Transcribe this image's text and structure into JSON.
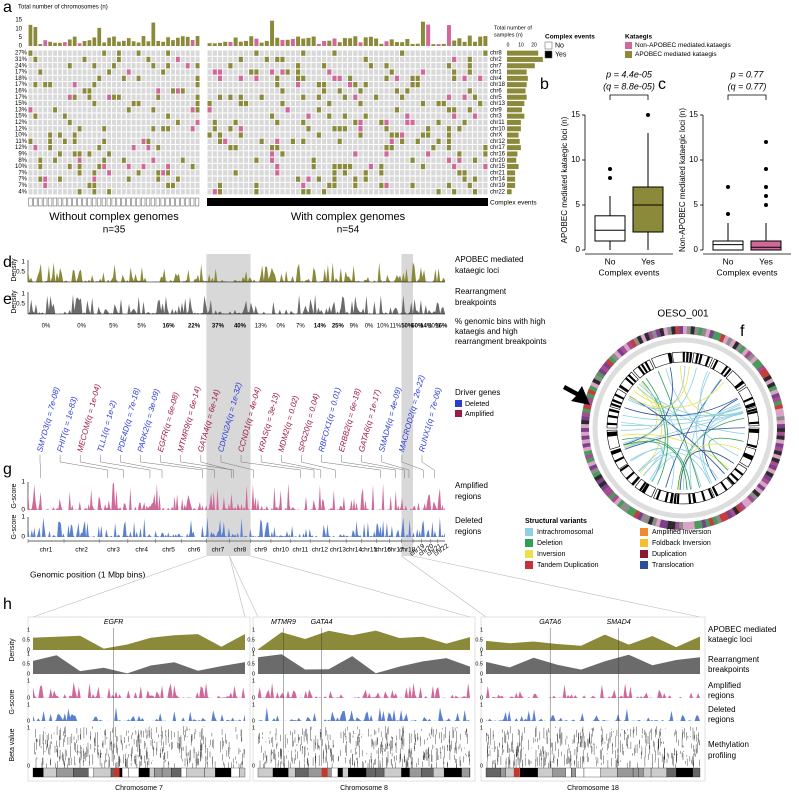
{
  "panel_a": {
    "letter": "a",
    "bar_title": "Total number of chromosomes (n)",
    "bar_ticks": [
      "15",
      "10",
      "5",
      "0"
    ],
    "row_percents": [
      "27%",
      "31%",
      "24%",
      "17%",
      "18%",
      "17%",
      "16%",
      "17%",
      "15%",
      "13%",
      "15%",
      "12%",
      "12%",
      "10%",
      "11%",
      "12%",
      "9%",
      "8%",
      "10%",
      "7%",
      "7%",
      "7%",
      "4%"
    ],
    "rows": [
      "chr8",
      "chr2",
      "chr7",
      "chr1",
      "chr4",
      "chr18",
      "chr6",
      "chr5",
      "chr13",
      "chr9",
      "chr3",
      "chr11",
      "chr10",
      "chrX",
      "chr12",
      "chr17",
      "chr16",
      "chr20",
      "chr15",
      "chr21",
      "chr14",
      "chr19",
      "chr22"
    ],
    "samples_title": [
      "Total number of",
      "samples (n)"
    ],
    "samples_ticks": [
      "0",
      "10",
      "20"
    ],
    "complex_row": "Complex events",
    "groups": [
      {
        "label": "Without complex genomes",
        "n": "n=35"
      },
      {
        "label": "With complex genomes",
        "n": "n=54"
      }
    ]
  },
  "legend_a": {
    "complex_title": "Complex events",
    "complex_items": [
      "No",
      "Yes"
    ],
    "kataegis_title": "Kataegis",
    "kataegis_items": [
      "Non-APOBEC mediated.kataegis",
      "APOBEC mediated kataegis"
    ]
  },
  "panel_b": {
    "letter": "b",
    "p": "p = 4.4e-05",
    "q": "(q = 8.8e-05)",
    "ylabel": "APOBEC mediated kataegic loci (n)",
    "yticks": [
      "0",
      "5",
      "10",
      "15"
    ],
    "categories": [
      "No",
      "Yes"
    ],
    "xlabel": "Complex events"
  },
  "panel_c": {
    "letter": "c",
    "p": "p = 0.77",
    "q": "(q = 0.77)",
    "ylabel": "Non-APOBEC mediated kataegic loci (n)",
    "yticks": [
      "0",
      "5",
      "10",
      "15"
    ],
    "categories": [
      "No",
      "Yes"
    ],
    "xlabel": "Complex events"
  },
  "panel_de": {
    "d": "d",
    "e": "e",
    "density": "Density",
    "ticks": [
      "1",
      "0.5"
    ],
    "apobec_label": [
      "APOBEC mediated",
      "kataegic loci"
    ],
    "rearr_label": [
      "Rearrangment",
      "breakpoints"
    ],
    "percents": [
      "0%",
      "0%",
      "5%",
      "5%",
      "16%",
      "22%",
      "37%",
      "40%",
      "13%",
      "0%",
      "7%",
      "14%",
      "25%",
      "9%",
      "0%",
      "10%",
      "11%",
      "50%",
      "50%",
      "14%",
      "10%",
      "16%"
    ],
    "percent_label": [
      "% genomic bins with high",
      "kataegis and high",
      "rearrangment breakpoints"
    ]
  },
  "drivers": {
    "legend_title": "Driver genes",
    "legend": [
      {
        "label": "Deleted",
        "color": "#2b3bd6"
      },
      {
        "label": "Amplified",
        "color": "#9b1a4a"
      }
    ],
    "genes": [
      {
        "label": "SMYD3(q = 7e-08)",
        "color": "#2b3bd6"
      },
      {
        "label": "FHIT(q = 1e-83)",
        "color": "#2b3bd6"
      },
      {
        "label": "MECOM(q = 1e-04)",
        "color": "#9b1a4a"
      },
      {
        "label": "TLL1(q = 1e-2)",
        "color": "#2b3bd6"
      },
      {
        "label": "PDE4D(q = 7e-18)",
        "color": "#2b3bd6"
      },
      {
        "label": "PARK2(q = 3e-09)",
        "color": "#2b3bd6"
      },
      {
        "label": "EGFR(q = 6e-08)",
        "color": "#9b1a4a"
      },
      {
        "label": "MTMR9(q = 6e-14)",
        "color": "#9b1a4a"
      },
      {
        "label": "GATA4(q = 6e-14)",
        "color": "#9b1a4a"
      },
      {
        "label": "CDKN2A(q = 1e-32)",
        "color": "#2b3bd6"
      },
      {
        "label": "CCND1(q = 4e-04)",
        "color": "#9b1a4a"
      },
      {
        "label": "KRAS(q = 3e-13)",
        "color": "#9b1a4a"
      },
      {
        "label": "MDM2(q = 0.02)",
        "color": "#9b1a4a"
      },
      {
        "label": "SPG20(q = 0.04)",
        "color": "#9b1a4a"
      },
      {
        "label": "RBFOX1(q = 0.01)",
        "color": "#2b3bd6"
      },
      {
        "label": "ERBB2(q = 6e-18)",
        "color": "#9b1a4a"
      },
      {
        "label": "GATA6(q = 1e-17)",
        "color": "#9b1a4a"
      },
      {
        "label": "SMAD4(q = 4e-09)",
        "color": "#2b3bd6"
      },
      {
        "label": "MACROD2(q = 2e-22)",
        "color": "#2b3bd6"
      },
      {
        "label": "RUNX1(q = 7e-06)",
        "color": "#2b3bd6"
      }
    ]
  },
  "panel_g": {
    "letter": "g",
    "gscore": "G-score",
    "ticks": [
      "1",
      "0"
    ],
    "amp_label": [
      "Amplified",
      "regions"
    ],
    "del_label": [
      "Deleted",
      "regions"
    ],
    "chromosomes": [
      "chr1",
      "chr2",
      "chr3",
      "chr4",
      "chr5",
      "chr6",
      "chr7",
      "chr8",
      "chr9",
      "chr10",
      "chr11",
      "chr12",
      "chr13",
      "chr14",
      "chr15",
      "chr16",
      "chr17",
      "chr18",
      "chr19",
      "chr20",
      "chr21",
      "chr22"
    ],
    "xlabel": "Genomic position (1 Mbp bins)"
  },
  "panel_f": {
    "letter": "f",
    "sample": "OESO_001"
  },
  "sv_legend": {
    "title": "Structural variants",
    "items": [
      {
        "label": "Intrachromosomal",
        "color": "#8fd0e3"
      },
      {
        "label": "Deletion",
        "color": "#2f9e57"
      },
      {
        "label": "Inversion",
        "color": "#e9e24c"
      },
      {
        "label": "Tandem Duplication",
        "color": "#c9303a"
      },
      {
        "label": "Amplified Inversion",
        "color": "#f08a2e"
      },
      {
        "label": "Foldback  Inversion",
        "color": "#f5c02a"
      },
      {
        "label": "Duplication",
        "color": "#8a1b2e"
      },
      {
        "label": "Translocation",
        "color": "#2b4f9c"
      }
    ]
  },
  "panel_h": {
    "letter": "h",
    "density": "Density",
    "gscore": "G-score",
    "beta": "Beta value",
    "density_ticks": [
      "1",
      "0.5",
      "0"
    ],
    "gscore_ticks": [
      "1",
      "0"
    ],
    "beta_ticks": [
      "1",
      "0"
    ],
    "panels": [
      {
        "chromosome": "Chromosome 7",
        "genes": [
          "EGFR"
        ]
      },
      {
        "chromosome": "Chromosome 8",
        "genes": [
          "MTMR9",
          "GATA4"
        ]
      },
      {
        "chromosome": "Chromosome 18",
        "genes": [
          "GATA6",
          "SMAD4"
        ]
      }
    ],
    "labels": [
      "APOBEC mediated",
      "kataegic loci",
      "Rearrangment",
      "breakpoints",
      "Amplified",
      "regions",
      "Deleted",
      "regions",
      "Methylation",
      "profiling"
    ]
  }
}
